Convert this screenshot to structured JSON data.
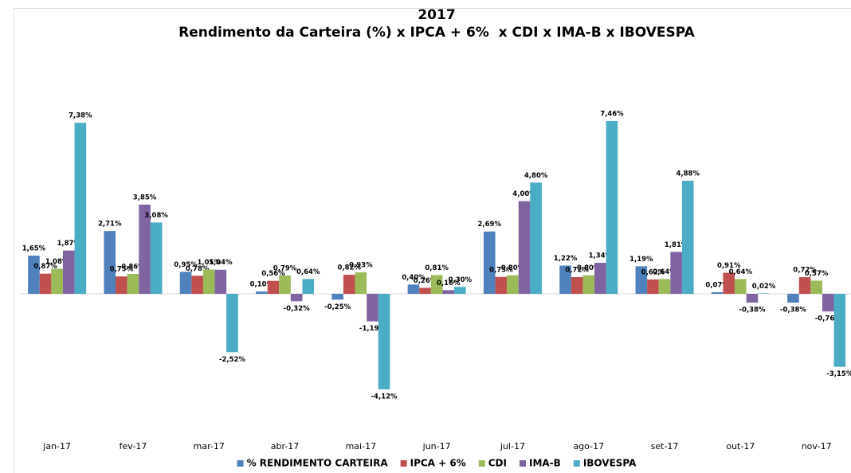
{
  "chart_data": {
    "type": "bar",
    "title": "2017",
    "subtitle": "Rendimento da Carteira (%) x IPCA + 6%  x CDI x IMA-B x IBOVESPA",
    "categories": [
      "jan-17",
      "fev-17",
      "mar-17",
      "abr-17",
      "mai-17",
      "jun-17",
      "jul-17",
      "ago-17",
      "set-17",
      "out-17",
      "nov-17"
    ],
    "legend": "bottom",
    "series": [
      {
        "name": "% RENDIMENTO CARTEIRA",
        "color": "#4f81bd",
        "values": [
          1.65,
          2.71,
          0.95,
          0.1,
          -0.25,
          0.4,
          2.69,
          1.22,
          1.19,
          0.07,
          -0.38
        ],
        "value_labels": [
          "1,65%",
          "2,71%",
          "0,95%",
          "0,10%",
          "-0,25%",
          "0,40%",
          "2,69%",
          "1,22%",
          "1,19%",
          "0,07%",
          "-0,38%"
        ]
      },
      {
        "name": "IPCA + 6%",
        "color": "#c0504d",
        "values": [
          0.87,
          0.75,
          0.78,
          0.56,
          0.82,
          0.26,
          0.73,
          0.72,
          0.62,
          0.91,
          0.72
        ],
        "value_labels": [
          "0,87%",
          "0,75%",
          "0,78%",
          "0,56%",
          "0,82%",
          "0,26%",
          "0,73%",
          "0,72%",
          "0,62%",
          "0,91%",
          "0,72%"
        ]
      },
      {
        "name": "CDI",
        "color": "#9bbb59",
        "values": [
          1.08,
          0.86,
          1.05,
          0.79,
          0.93,
          0.81,
          0.8,
          0.8,
          0.64,
          0.64,
          0.57
        ],
        "value_labels": [
          "1,08%",
          "0,86%",
          "1,05%",
          "0,79%",
          "0,93%",
          "0,81%",
          "0,80%",
          "0,80%",
          "0,64%",
          "0,64%",
          "0,57%"
        ]
      },
      {
        "name": "IMA-B",
        "color": "#8064a2",
        "values": [
          1.87,
          3.85,
          1.04,
          -0.32,
          -1.19,
          0.16,
          4.0,
          1.34,
          1.81,
          -0.38,
          -0.76
        ],
        "value_labels": [
          "1,87%",
          "3,85%",
          "1,04%",
          "-0,32%",
          "-1,19%",
          "0,16%",
          "4,00%",
          "1,34%",
          "1,81%",
          "-0,38%",
          "-0,76%"
        ]
      },
      {
        "name": "IBOVESPA",
        "color": "#4bacc6",
        "values": [
          7.38,
          3.08,
          -2.52,
          0.64,
          -4.12,
          0.3,
          4.8,
          7.46,
          4.88,
          0.02,
          -3.15
        ],
        "value_labels": [
          "7,38%",
          "3,08%",
          "-2,52%",
          "0,64%",
          "-4,12%",
          "0,30%",
          "4,80%",
          "7,46%",
          "4,88%",
          "0,02%",
          "-3,15%"
        ]
      }
    ]
  }
}
